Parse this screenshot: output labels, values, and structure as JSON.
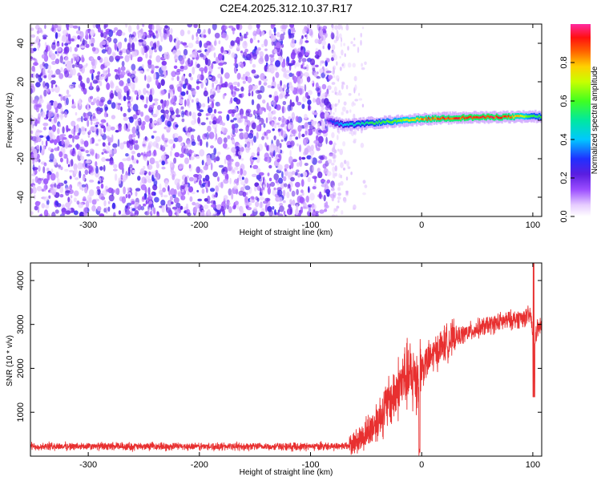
{
  "title": "C2E4.2025.312.10.37.R17",
  "colors": {
    "trace": "#e83030",
    "background": "#ffffff",
    "axis": "#000000"
  },
  "chart_data": [
    {
      "type": "heatmap",
      "name": "spectrogram",
      "xlabel": "Height of straight line (km)",
      "ylabel": "Frequency (Hz)",
      "xlim": [
        -352,
        108
      ],
      "ylim": [
        -50,
        50
      ],
      "xticks": [
        -300,
        -200,
        -100,
        0,
        100
      ],
      "yticks": [
        -40,
        -20,
        0,
        20,
        40
      ],
      "noise_region": {
        "x_range": [
          -352,
          -80
        ],
        "frequency_range": [
          -50,
          50
        ],
        "peak_amplitude": 0.2
      },
      "sparse_region": {
        "x_range": [
          -80,
          -50
        ],
        "peak_amplitude": 0.05
      },
      "signal_line": {
        "x": [
          -85,
          -80,
          -70,
          -60,
          -50,
          -40,
          -30,
          -20,
          -10,
          0,
          20,
          40,
          60,
          80,
          100,
          108
        ],
        "frequency": [
          0,
          -1,
          -2.5,
          -2.2,
          -1.6,
          -1.2,
          -0.8,
          -0.4,
          0,
          0.6,
          1,
          1.4,
          1.6,
          1.8,
          2,
          2
        ],
        "amplitude": [
          0.2,
          0.35,
          0.45,
          0.5,
          0.55,
          0.6,
          0.65,
          0.7,
          0.8,
          0.9,
          0.95,
          0.98,
          0.98,
          0.95,
          0.6,
          0.6
        ]
      },
      "colorbar": {
        "label": "Normalized spectral amplitude",
        "range": [
          0,
          1
        ],
        "ticks": [
          0.0,
          0.2,
          0.4,
          0.6,
          0.8
        ],
        "tick_labels": [
          "0.0",
          "0.2",
          "0.4",
          "0.6",
          "0.8"
        ]
      }
    },
    {
      "type": "line",
      "name": "snr",
      "xlabel": "Height of straight line (km)",
      "ylabel": "SNR (10 * v/v)",
      "xlim": [
        -352,
        108
      ],
      "ylim": [
        0,
        4400
      ],
      "xticks": [
        -300,
        -200,
        -100,
        0,
        100
      ],
      "yticks": [
        1000,
        2000,
        3000,
        4000
      ],
      "series": [
        {
          "name": "SNR",
          "x": [
            -352,
            -300,
            -250,
            -200,
            -150,
            -100,
            -80,
            -65,
            -55,
            -45,
            -35,
            -25,
            -15,
            -5,
            0,
            10,
            20,
            30,
            40,
            50,
            60,
            70,
            80,
            90,
            98,
            101,
            104,
            108
          ],
          "values": [
            220,
            220,
            220,
            220,
            220,
            220,
            225,
            240,
            400,
            650,
            1000,
            1400,
            1800,
            1800,
            2000,
            2300,
            2550,
            2700,
            2800,
            2900,
            2980,
            3050,
            3100,
            3150,
            3200,
            2600,
            2900,
            2950
          ]
        }
      ],
      "annotations": [
        {
          "x": 101,
          "y": 4400,
          "text": "spike"
        },
        {
          "x": 101,
          "y": 1350,
          "text": "dropout"
        },
        {
          "x": -2,
          "y": 0,
          "text": "dropout"
        }
      ]
    }
  ]
}
